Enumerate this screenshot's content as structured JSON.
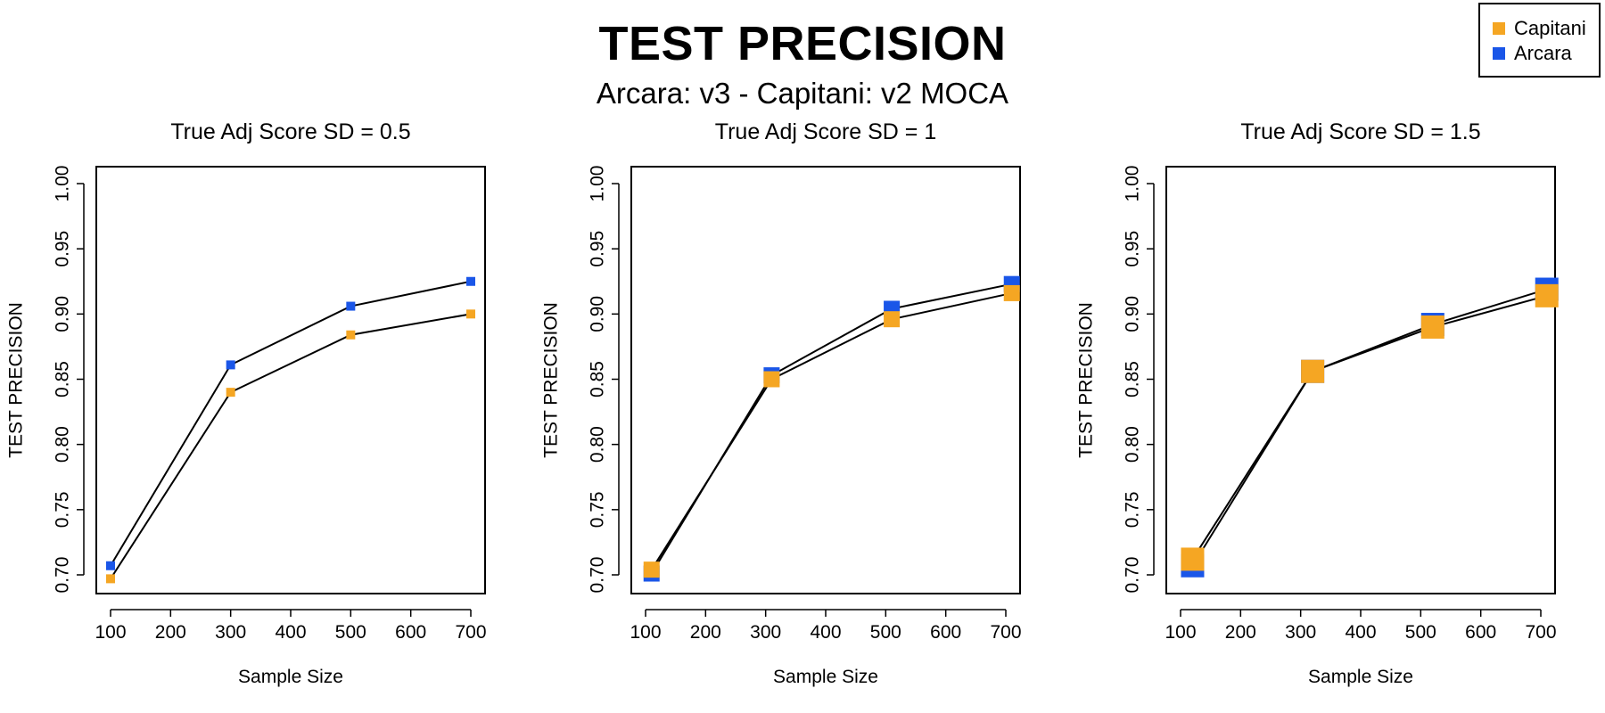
{
  "title": "TEST PRECISION",
  "subtitle": "Arcara: v3 - Capitani: v2 MOCA",
  "legend": [
    {
      "label": "Capitani",
      "color": "#F5A623"
    },
    {
      "label": "Arcara",
      "color": "#1A56E8"
    }
  ],
  "chart_data": [
    {
      "type": "line",
      "title": "True Adj Score SD = 0.5",
      "xlabel": "Sample Size",
      "ylabel": "TEST PRECISION",
      "xlim": [
        100,
        700
      ],
      "ylim": [
        0.7,
        1.0
      ],
      "xticks": [
        "100",
        "200",
        "300",
        "400",
        "500",
        "600",
        "700"
      ],
      "yticks": [
        "0.70",
        "0.75",
        "0.80",
        "0.85",
        "0.90",
        "0.95",
        "1.00"
      ],
      "series": [
        {
          "name": "Arcara",
          "color": "#1A56E8",
          "x": [
            100,
            300,
            500,
            700
          ],
          "values": [
            0.707,
            0.861,
            0.906,
            0.925
          ]
        },
        {
          "name": "Capitani",
          "color": "#F5A623",
          "x": [
            100,
            300,
            500,
            700
          ],
          "values": [
            0.697,
            0.84,
            0.884,
            0.9
          ]
        }
      ]
    },
    {
      "type": "line",
      "title": "True Adj Score SD = 1",
      "xlabel": "Sample Size",
      "ylabel": "TEST PRECISION",
      "xlim": [
        100,
        700
      ],
      "ylim": [
        0.7,
        1.0
      ],
      "xticks": [
        "100",
        "200",
        "300",
        "400",
        "500",
        "600",
        "700"
      ],
      "yticks": [
        "0.70",
        "0.75",
        "0.80",
        "0.85",
        "0.90",
        "0.95",
        "1.00"
      ],
      "series": [
        {
          "name": "Arcara",
          "color": "#1A56E8",
          "x": [
            110,
            310,
            510,
            710
          ],
          "values": [
            0.701,
            0.853,
            0.904,
            0.923
          ]
        },
        {
          "name": "Capitani",
          "color": "#F5A623",
          "x": [
            110,
            310,
            510,
            710
          ],
          "values": [
            0.704,
            0.85,
            0.896,
            0.916
          ]
        }
      ]
    },
    {
      "type": "line",
      "title": "True Adj Score SD = 1.5",
      "xlabel": "Sample Size",
      "ylabel": "TEST PRECISION",
      "xlim": [
        100,
        700
      ],
      "ylim": [
        0.7,
        1.0
      ],
      "xticks": [
        "100",
        "200",
        "300",
        "400",
        "500",
        "600",
        "700"
      ],
      "yticks": [
        "0.70",
        "0.75",
        "0.80",
        "0.85",
        "0.90",
        "0.95",
        "1.00"
      ],
      "series": [
        {
          "name": "Arcara",
          "color": "#1A56E8",
          "x": [
            120,
            320,
            520,
            710
          ],
          "values": [
            0.707,
            0.856,
            0.892,
            0.919
          ]
        },
        {
          "name": "Capitani",
          "color": "#F5A623",
          "x": [
            120,
            320,
            520,
            710
          ],
          "values": [
            0.712,
            0.856,
            0.89,
            0.914
          ]
        }
      ]
    }
  ]
}
